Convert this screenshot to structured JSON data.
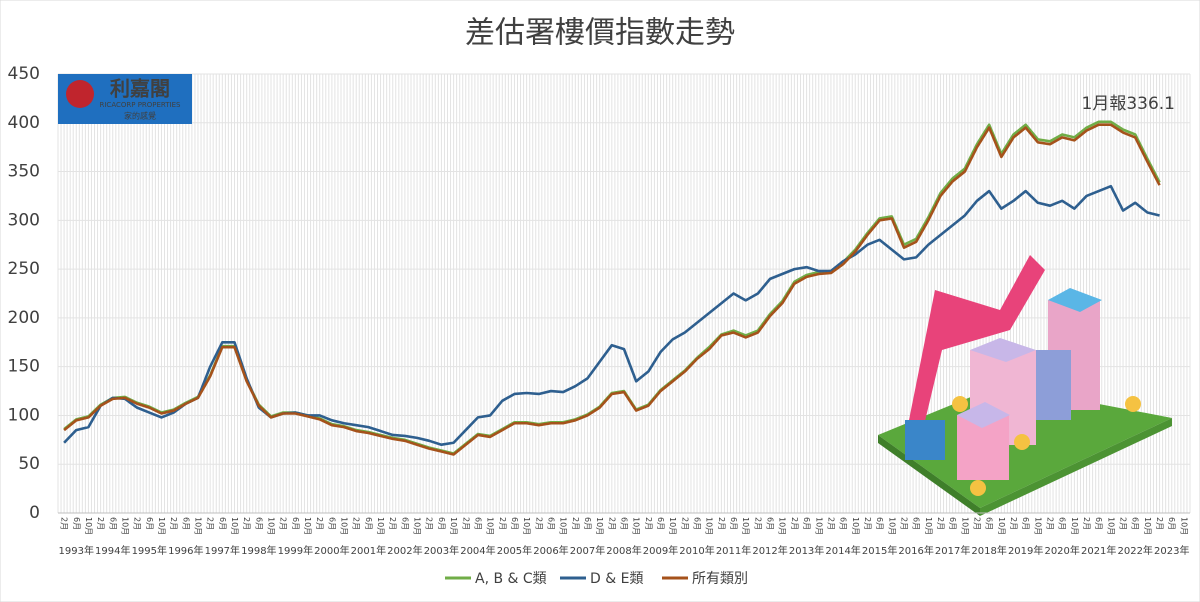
{
  "chart_data": {
    "type": "line",
    "title": "差估署樓價指數走勢",
    "annotation": "1月報336.1",
    "logo": {
      "name": "利嘉閣",
      "english": "RICACORP PROPERTIES",
      "slogan": "家的感覺"
    },
    "categories": [
      "2月",
      "6月",
      "10月",
      "2月",
      "6月",
      "10月",
      "2月",
      "6月",
      "10月",
      "2月",
      "6月",
      "10月",
      "2月",
      "6月",
      "10月",
      "2月",
      "6月",
      "10月",
      "2月",
      "6月",
      "10月",
      "2月",
      "6月",
      "10月",
      "2月",
      "6月",
      "10月",
      "2月",
      "6月",
      "10月",
      "2月",
      "6月",
      "10月",
      "2月",
      "6月",
      "10月",
      "2月",
      "6月",
      "10月",
      "2月",
      "6月",
      "10月",
      "2月",
      "6月",
      "10月",
      "2月",
      "6月",
      "10月",
      "2月",
      "6月",
      "10月",
      "2月",
      "6月",
      "10月",
      "2月",
      "6月",
      "10月",
      "2月",
      "6月",
      "10月",
      "2月",
      "6月",
      "10月",
      "2月",
      "6月",
      "10月",
      "2月",
      "6月",
      "10月",
      "2月",
      "6月",
      "10月",
      "2月",
      "6月",
      "10月",
      "2月",
      "6月",
      "10月",
      "2月",
      "6月",
      "10月",
      "2月",
      "6月",
      "10月",
      "2月",
      "6月",
      "10月",
      "2月",
      "6月",
      "10月",
      "2月",
      "6月",
      "10月"
    ],
    "year_labels": [
      "1993年",
      "1994年",
      "1995年",
      "1996年",
      "1997年",
      "1998年",
      "1999年",
      "2000年",
      "2001年",
      "2002年",
      "2003年",
      "2004年",
      "2005年",
      "2006年",
      "2007年",
      "2008年",
      "2009年",
      "2010年",
      "2011年",
      "2012年",
      "2013年",
      "2014年",
      "2015年",
      "2016年",
      "2017年",
      "2018年",
      "2019年",
      "2020年",
      "2021年",
      "2022年",
      "2023年"
    ],
    "ylim": [
      0,
      450
    ],
    "yticks": [
      0,
      50,
      100,
      150,
      200,
      250,
      300,
      350,
      400,
      450
    ],
    "grid": true,
    "series": [
      {
        "name": "A, B & C類",
        "color": "#70ad47",
        "values": [
          86,
          96,
          99,
          111,
          118,
          119,
          113,
          109,
          103,
          106,
          113,
          119,
          141,
          171,
          171,
          136,
          111,
          99,
          103,
          103,
          100,
          97,
          91,
          89,
          85,
          83,
          80,
          77,
          75,
          71,
          67,
          64,
          61,
          71,
          81,
          79,
          86,
          93,
          93,
          91,
          93,
          93,
          96,
          101,
          109,
          123,
          125,
          106,
          111,
          126,
          136,
          146,
          159,
          170,
          183,
          187,
          182,
          187,
          204,
          217,
          237,
          244,
          247,
          248,
          257,
          270,
          287,
          302,
          304,
          275,
          281,
          303,
          328,
          343,
          353,
          378,
          398,
          368,
          388,
          398,
          383,
          381,
          388,
          385,
          395,
          401,
          401,
          393,
          388,
          363,
          339,
          null,
          null
        ]
      },
      {
        "name": "D & E類",
        "color": "#2e5f8f",
        "values": [
          72,
          85,
          88,
          110,
          118,
          117,
          108,
          103,
          98,
          103,
          112,
          118,
          150,
          175,
          175,
          138,
          108,
          98,
          102,
          103,
          100,
          100,
          95,
          92,
          90,
          88,
          84,
          80,
          79,
          77,
          74,
          70,
          72,
          85,
          98,
          100,
          115,
          122,
          123,
          122,
          125,
          124,
          130,
          138,
          155,
          172,
          168,
          135,
          145,
          165,
          178,
          185,
          195,
          205,
          215,
          225,
          218,
          225,
          240,
          245,
          250,
          252,
          248,
          248,
          258,
          265,
          275,
          280,
          270,
          260,
          262,
          275,
          285,
          295,
          305,
          320,
          330,
          312,
          320,
          330,
          318,
          315,
          320,
          312,
          325,
          330,
          335,
          310,
          318,
          308,
          305,
          null,
          null
        ]
      },
      {
        "name": "所有類別",
        "color": "#a5521b",
        "values": [
          85,
          95,
          98,
          110,
          117,
          118,
          112,
          108,
          102,
          105,
          112,
          118,
          140,
          170,
          170,
          135,
          110,
          98,
          102,
          102,
          99,
          96,
          90,
          88,
          84,
          82,
          79,
          76,
          74,
          70,
          66,
          63,
          60,
          70,
          80,
          78,
          85,
          92,
          92,
          90,
          92,
          92,
          95,
          100,
          108,
          122,
          124,
          105,
          110,
          125,
          135,
          145,
          158,
          168,
          182,
          185,
          180,
          185,
          202,
          215,
          235,
          242,
          245,
          246,
          255,
          268,
          285,
          300,
          302,
          272,
          278,
          300,
          325,
          340,
          350,
          375,
          395,
          365,
          385,
          395,
          380,
          378,
          385,
          382,
          392,
          398,
          398,
          390,
          385,
          360,
          336,
          null,
          null
        ]
      }
    ]
  }
}
